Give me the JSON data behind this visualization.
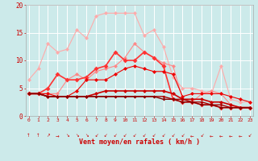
{
  "x": [
    0,
    1,
    2,
    3,
    4,
    5,
    6,
    7,
    8,
    9,
    10,
    11,
    12,
    13,
    14,
    15,
    16,
    17,
    18,
    19,
    20,
    21,
    22,
    23
  ],
  "series": [
    {
      "color": "#ffaaaa",
      "linewidth": 0.8,
      "markersize": 2.5,
      "y": [
        6.5,
        8.5,
        13.0,
        11.5,
        12.0,
        15.5,
        14.0,
        18.0,
        18.5,
        18.5,
        18.5,
        18.5,
        14.5,
        15.5,
        12.5,
        7.0,
        5.0,
        5.0,
        4.5,
        4.0,
        9.0,
        3.0,
        2.5,
        2.5
      ]
    },
    {
      "color": "#ff8888",
      "linewidth": 0.8,
      "markersize": 2.5,
      "y": [
        4.0,
        4.0,
        4.0,
        4.0,
        6.5,
        7.5,
        6.5,
        8.0,
        8.5,
        9.0,
        10.5,
        13.0,
        11.5,
        10.5,
        9.5,
        9.0,
        3.0,
        2.5,
        4.0,
        4.5,
        4.0,
        2.0,
        1.5,
        1.5
      ]
    },
    {
      "color": "#ff3333",
      "linewidth": 1.2,
      "markersize": 3,
      "y": [
        4.0,
        4.0,
        5.0,
        7.5,
        6.5,
        6.5,
        7.0,
        8.5,
        9.0,
        11.5,
        10.0,
        10.0,
        11.5,
        10.5,
        9.0,
        3.0,
        2.5,
        2.5,
        2.0,
        2.0,
        1.5,
        1.5,
        1.5,
        1.5
      ]
    },
    {
      "color": "#ee0000",
      "linewidth": 0.8,
      "markersize": 2.5,
      "y": [
        4.0,
        4.0,
        4.0,
        3.5,
        3.5,
        4.5,
        6.5,
        6.5,
        6.5,
        7.5,
        8.5,
        9.0,
        8.5,
        8.0,
        8.0,
        7.5,
        3.5,
        4.0,
        4.0,
        4.0,
        4.0,
        3.5,
        3.0,
        2.5
      ]
    },
    {
      "color": "#cc0000",
      "linewidth": 1.2,
      "markersize": 2.5,
      "y": [
        4.0,
        4.0,
        3.5,
        3.5,
        3.5,
        3.5,
        3.5,
        4.0,
        4.5,
        4.5,
        4.5,
        4.5,
        4.5,
        4.5,
        4.5,
        4.0,
        3.0,
        3.0,
        3.0,
        2.5,
        2.5,
        2.0,
        1.5,
        1.5
      ]
    },
    {
      "color": "#aa0000",
      "linewidth": 1.0,
      "markersize": 2.0,
      "y": [
        4.0,
        4.0,
        3.5,
        3.5,
        3.5,
        3.5,
        3.5,
        3.5,
        3.5,
        3.5,
        3.5,
        3.5,
        3.5,
        3.5,
        3.5,
        3.0,
        3.0,
        2.5,
        2.5,
        2.0,
        2.0,
        1.5,
        1.5,
        1.5
      ]
    },
    {
      "color": "#880000",
      "linewidth": 1.0,
      "markersize": 2.0,
      "y": [
        4.0,
        4.0,
        3.5,
        3.5,
        3.5,
        3.5,
        3.5,
        3.5,
        3.5,
        3.5,
        3.5,
        3.5,
        3.5,
        3.5,
        3.0,
        3.0,
        2.5,
        2.5,
        2.0,
        2.0,
        1.5,
        1.5,
        1.5,
        1.5
      ]
    }
  ],
  "xlim_min": -0.3,
  "xlim_max": 23.3,
  "ylim_min": 0,
  "ylim_max": 20,
  "xticks": [
    0,
    1,
    2,
    3,
    4,
    5,
    6,
    7,
    8,
    9,
    10,
    11,
    12,
    13,
    14,
    15,
    16,
    17,
    18,
    19,
    20,
    21,
    22,
    23
  ],
  "yticks": [
    0,
    5,
    10,
    15,
    20
  ],
  "xlabel": "Vent moyen/en rafales ( km/h )",
  "bg_color": "#cceaea",
  "grid_color": "#ffffff",
  "tick_color": "#cc0000",
  "label_color": "#cc0000",
  "arrow_chars": [
    "↑",
    "↑",
    "↗",
    "→",
    "↘",
    "↘",
    "↘",
    "↙",
    "↙",
    "↙",
    "↙",
    "↙",
    "↙",
    "↙",
    "↙",
    "↙",
    "↙",
    "←",
    "↙",
    "←",
    "←",
    "←",
    "←",
    "↙"
  ]
}
